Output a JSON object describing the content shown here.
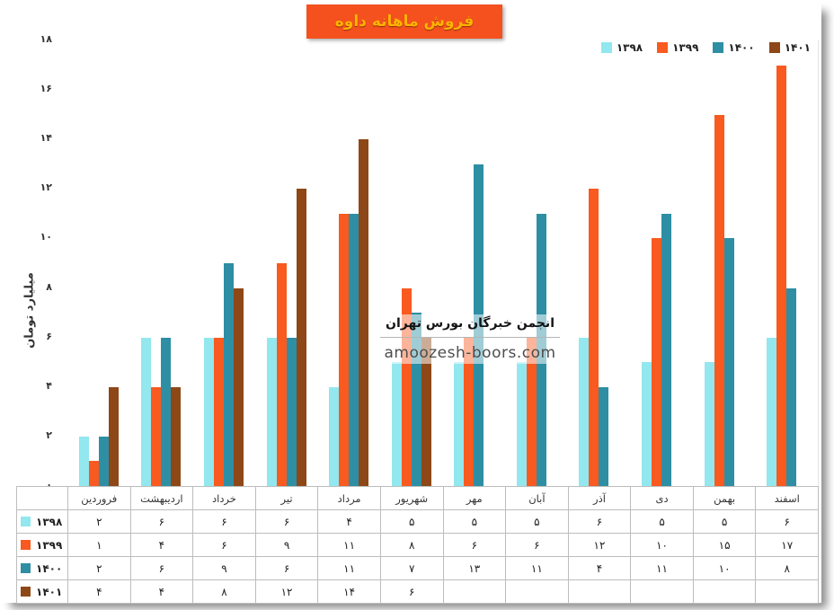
{
  "title": "فروش ماهانه داوه",
  "watermark": {
    "line1": "انجمن خبرگان بورس تهران",
    "line2": "amoozesh-boors.com"
  },
  "chart_data": {
    "type": "bar",
    "title": "فروش ماهانه داوه",
    "xlabel": "",
    "ylabel": "میلیارد تومان",
    "ylim": [
      0,
      18
    ],
    "ytick_step": 2,
    "grid": false,
    "legend_position": "top-right",
    "digit_style": "persian",
    "categories": [
      "فروردین",
      "اردیبهشت",
      "خرداد",
      "تیر",
      "مرداد",
      "شهریور",
      "مهر",
      "آبان",
      "آذر",
      "دی",
      "بهمن",
      "اسفند"
    ],
    "series": [
      {
        "name": "۱۳۹۸",
        "color": "#93e7ef",
        "values": [
          2,
          6,
          6,
          6,
          4,
          5,
          5,
          5,
          6,
          5,
          5,
          6
        ]
      },
      {
        "name": "۱۳۹۹",
        "color": "#f85a1f",
        "values": [
          1,
          4,
          6,
          9,
          11,
          8,
          6,
          6,
          12,
          10,
          15,
          17
        ]
      },
      {
        "name": "۱۴۰۰",
        "color": "#2e8ea4",
        "values": [
          2,
          6,
          9,
          6,
          11,
          7,
          13,
          11,
          4,
          11,
          10,
          8
        ]
      },
      {
        "name": "۱۴۰۱",
        "color": "#8e4717",
        "values": [
          4,
          4,
          8,
          12,
          14,
          6,
          null,
          null,
          null,
          null,
          null,
          null
        ]
      }
    ],
    "data_table_shown": true
  }
}
